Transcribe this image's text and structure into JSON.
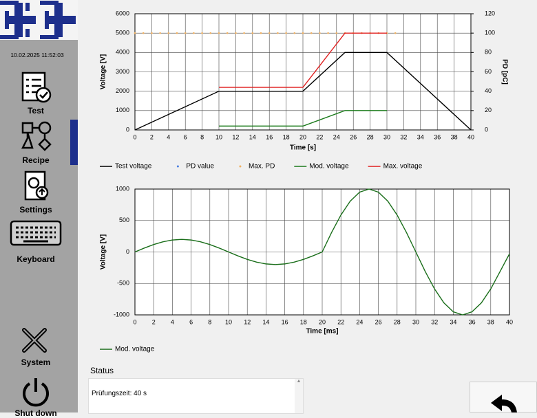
{
  "sidebar": {
    "timestamp": "10.02.2025 11:52:03",
    "items": [
      {
        "label": "Test"
      },
      {
        "label": "Recipe",
        "selected": true
      },
      {
        "label": "Settings"
      },
      {
        "label": "Keyboard"
      },
      {
        "label": "System"
      },
      {
        "label": "Shut down"
      }
    ]
  },
  "chart_data": [
    {
      "type": "line",
      "ylabel": "Voltage [V]",
      "y2label": "PD [pC]",
      "xlabel": "Time [s]",
      "grid": true,
      "xlim": [
        0,
        40
      ],
      "xticks": [
        0,
        2,
        4,
        6,
        8,
        10,
        12,
        14,
        16,
        18,
        20,
        22,
        24,
        26,
        28,
        30,
        32,
        34,
        36,
        38,
        40
      ],
      "ylim": [
        0,
        6000
      ],
      "yticks": [
        0,
        1000,
        2000,
        3000,
        4000,
        5000,
        6000
      ],
      "y2lim": [
        0,
        120
      ],
      "y2ticks": [
        0,
        20,
        40,
        60,
        80,
        100,
        120
      ],
      "series": [
        {
          "name": "Test voltage",
          "color": "#000000",
          "style": "line",
          "x": [
            0,
            10,
            20,
            25,
            30,
            40
          ],
          "values": [
            0,
            2000,
            2000,
            4000,
            4000,
            0
          ]
        },
        {
          "name": "PD value",
          "color": "#4a7fe0",
          "style": "dots",
          "axis": "y2",
          "x": [],
          "values": []
        },
        {
          "name": "Max. PD",
          "color": "#f0b060",
          "style": "dots",
          "axis": "y2",
          "x": [
            0,
            1,
            2,
            3,
            4,
            5,
            6,
            7,
            8,
            9,
            10,
            11,
            12,
            13,
            14,
            15,
            16,
            17,
            18,
            19,
            20,
            21,
            22,
            23,
            24,
            25,
            26,
            27,
            28,
            29,
            30,
            31
          ],
          "values": [
            100,
            100,
            100,
            100,
            100,
            100,
            100,
            100,
            100,
            100,
            100,
            100,
            100,
            100,
            100,
            100,
            100,
            100,
            100,
            100,
            100,
            100,
            100,
            100,
            100,
            100,
            100,
            100,
            100,
            100,
            100,
            100
          ]
        },
        {
          "name": "Mod. voltage",
          "color": "#1a7a1a",
          "style": "line",
          "x": [
            10,
            20,
            25,
            30
          ],
          "values": [
            200,
            200,
            1000,
            1000
          ]
        },
        {
          "name": "Max. voltage",
          "color": "#e02020",
          "style": "line",
          "x": [
            10,
            20,
            25,
            30
          ],
          "values": [
            2200,
            2200,
            5000,
            5000
          ]
        }
      ]
    },
    {
      "type": "line",
      "ylabel": "Voltage [V]",
      "xlabel": "Time [ms]",
      "grid": true,
      "xlim": [
        0,
        40
      ],
      "xticks": [
        0,
        2,
        4,
        6,
        8,
        10,
        12,
        14,
        16,
        18,
        20,
        22,
        24,
        26,
        28,
        30,
        32,
        34,
        36,
        38,
        40
      ],
      "ylim": [
        -1000,
        1000
      ],
      "yticks": [
        -1000,
        -500,
        0,
        500,
        1000
      ],
      "series": [
        {
          "name": "Mod. voltage",
          "color": "#1a6e1a",
          "style": "line",
          "x": [
            0,
            1,
            2,
            3,
            4,
            5,
            6,
            7,
            8,
            9,
            10,
            11,
            12,
            13,
            14,
            15,
            16,
            17,
            18,
            19,
            20,
            21,
            22,
            23,
            24,
            25,
            26,
            27,
            28,
            29,
            30,
            31,
            32,
            33,
            34,
            35,
            36,
            37,
            38,
            39,
            40
          ],
          "values": [
            0,
            62,
            118,
            162,
            190,
            200,
            190,
            162,
            118,
            62,
            0,
            -62,
            -118,
            -162,
            -190,
            -200,
            -190,
            -162,
            -118,
            -62,
            0,
            309,
            588,
            809,
            951,
            1000,
            951,
            809,
            588,
            309,
            0,
            -309,
            -588,
            -809,
            -951,
            -1000,
            -951,
            -809,
            -588,
            -309,
            -30
          ]
        }
      ]
    }
  ],
  "status": {
    "title": "Status",
    "lines": [
      "Prüfungszeit: 40 s"
    ]
  }
}
